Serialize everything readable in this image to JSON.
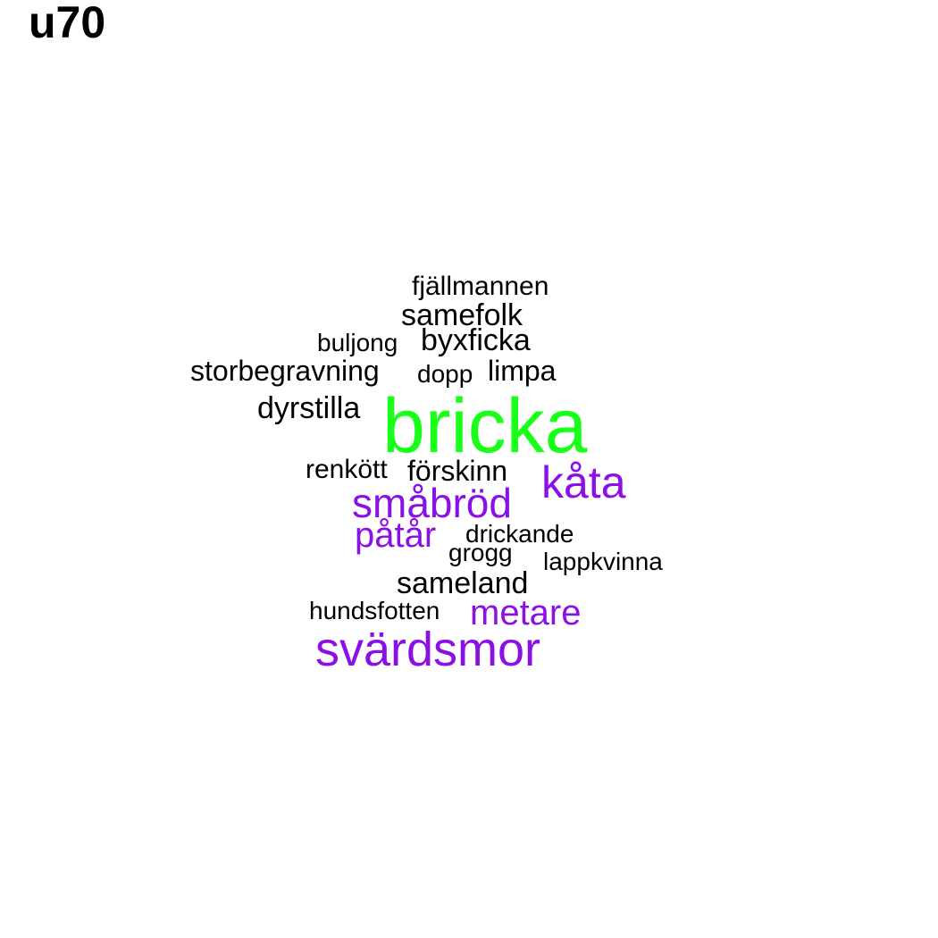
{
  "title": "u70",
  "colors": {
    "background": "#ffffff",
    "title": "#000000",
    "black": "#000000",
    "green": "#1aff1a",
    "purple": "#8b10e6"
  },
  "words": {
    "fjallmannen": {
      "text": "fjällmannen",
      "color": "#000000"
    },
    "samefolk": {
      "text": "samefolk",
      "color": "#000000"
    },
    "buljong": {
      "text": "buljong",
      "color": "#000000"
    },
    "byxficka": {
      "text": "byxficka",
      "color": "#000000"
    },
    "storbegravning": {
      "text": "storbegravning",
      "color": "#000000"
    },
    "dopp": {
      "text": "dopp",
      "color": "#000000"
    },
    "limpa": {
      "text": "limpa",
      "color": "#000000"
    },
    "dyrstilla": {
      "text": "dyrstilla",
      "color": "#000000"
    },
    "bricka": {
      "text": "bricka",
      "color": "#1aff1a"
    },
    "renkott": {
      "text": "renkött",
      "color": "#000000"
    },
    "forskinn": {
      "text": "förskinn",
      "color": "#000000"
    },
    "kata": {
      "text": "kåta",
      "color": "#8b10e6"
    },
    "smabrod": {
      "text": "småbröd",
      "color": "#8b10e6"
    },
    "patar": {
      "text": "påtår",
      "color": "#8b10e6"
    },
    "drickande": {
      "text": "drickande",
      "color": "#000000"
    },
    "grogg": {
      "text": "grogg",
      "color": "#000000"
    },
    "lappkvinna": {
      "text": "lappkvinna",
      "color": "#000000"
    },
    "sameland": {
      "text": "sameland",
      "color": "#000000"
    },
    "hundsfotten": {
      "text": "hundsfotten",
      "color": "#000000"
    },
    "metare": {
      "text": "metare",
      "color": "#8b10e6"
    },
    "svardsmor": {
      "text": "svärdsmor",
      "color": "#8b10e6"
    }
  }
}
